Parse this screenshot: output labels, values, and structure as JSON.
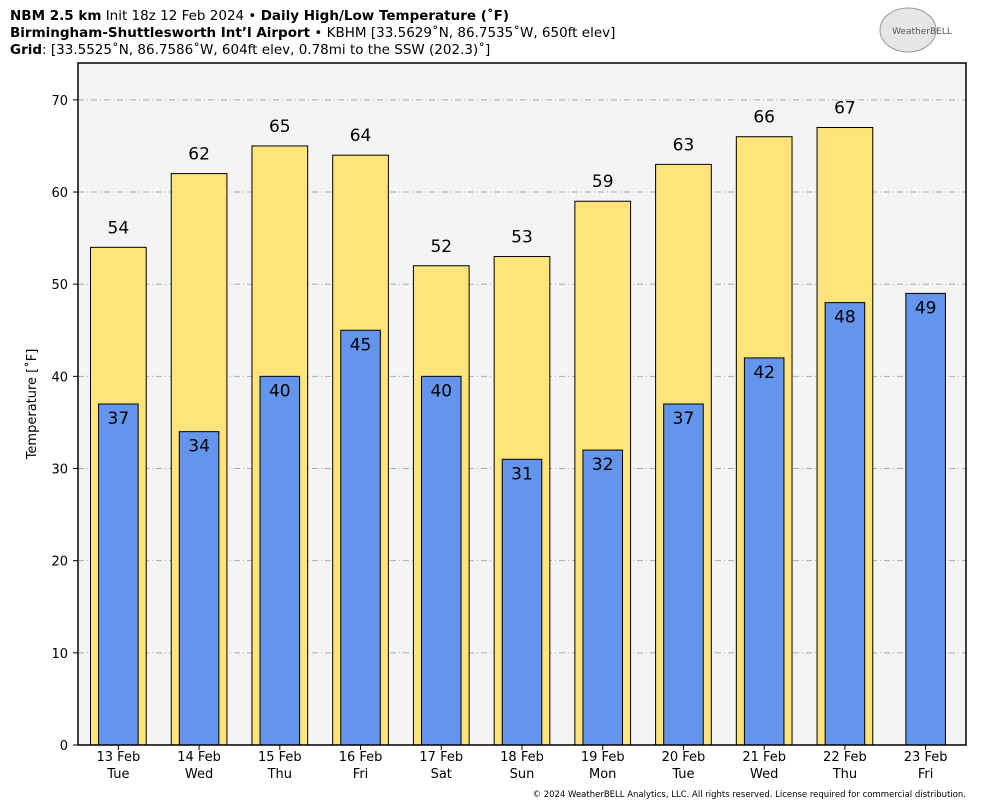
{
  "chart_data": {
    "type": "bar",
    "title": {
      "model": "NBM 2.5 km",
      "init": "Init 18z 12 Feb 2024 •",
      "product": "Daily High/Low Temperature (˚F)"
    },
    "station": {
      "name": "Birmingham-Shuttlesworth Int’l Airport",
      "detail": "• KBHM [33.5629˚N, 86.7535˚W, 650ft elev]"
    },
    "grid_point": {
      "label": "Grid",
      "detail": ": [33.5525˚N, 86.7586˚W, 604ft elev, 0.78mi to the SSW (202.3)˚]"
    },
    "logo": "WeatherBELL",
    "ylabel": "Temperature [˚F]",
    "copyright": "© 2024 WeatherBELL Analytics, LLC. All rights reserved. License required for commercial distribution.",
    "categories": [
      [
        "13 Feb",
        "Tue"
      ],
      [
        "14 Feb",
        "Wed"
      ],
      [
        "15 Feb",
        "Thu"
      ],
      [
        "16 Feb",
        "Fri"
      ],
      [
        "17 Feb",
        "Sat"
      ],
      [
        "18 Feb",
        "Sun"
      ],
      [
        "19 Feb",
        "Mon"
      ],
      [
        "20 Feb",
        "Tue"
      ],
      [
        "21 Feb",
        "Wed"
      ],
      [
        "22 Feb",
        "Thu"
      ],
      [
        "23 Feb",
        "Fri"
      ]
    ],
    "series": [
      {
        "name": "High",
        "color": "#fee47a",
        "values": [
          54,
          62,
          65,
          64,
          52,
          53,
          59,
          63,
          66,
          67,
          null
        ]
      },
      {
        "name": "Low",
        "color": "#6495ed",
        "values": [
          37,
          34,
          40,
          45,
          40,
          31,
          32,
          37,
          42,
          48,
          49
        ]
      }
    ],
    "ylim": [
      0,
      74
    ],
    "yticks": [
      0,
      10,
      20,
      30,
      40,
      50,
      60,
      70
    ],
    "grid": true
  }
}
